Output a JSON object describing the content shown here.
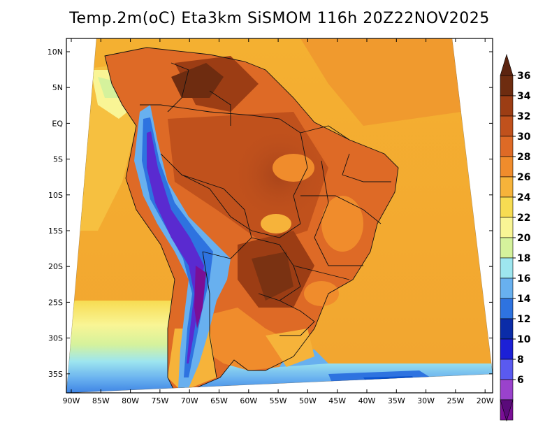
{
  "title": "Temp.2m(oC) Eta3km SiSMOM 116h 20Z22NOV2025",
  "map": {
    "lat_ticks": [
      "10N",
      "5N",
      "EQ",
      "5S",
      "10S",
      "15S",
      "20S",
      "25S",
      "30S",
      "35S"
    ],
    "lon_ticks": [
      "90W",
      "85W",
      "80W",
      "75W",
      "70W",
      "65W",
      "60W",
      "55W",
      "50W",
      "45W",
      "40W",
      "35W",
      "30W",
      "25W",
      "20W"
    ]
  },
  "colorbar": {
    "labels": [
      "36",
      "34",
      "32",
      "30",
      "28",
      "26",
      "24",
      "22",
      "20",
      "18",
      "16",
      "14",
      "12",
      "10",
      "8",
      "6"
    ],
    "colors": [
      "#6e2c10",
      "#9c3d14",
      "#c0511c",
      "#de6a26",
      "#f08c2c",
      "#f6b33a",
      "#f7dc52",
      "#f9f595",
      "#d5f29c",
      "#9ee6ef",
      "#68b0ef",
      "#2e73e0",
      "#0b2ca8",
      "#1c20d6",
      "#5a5af0",
      "#9a42cc",
      "#7a0f96"
    ],
    "arrow_top": "#5c2410",
    "arrow_bottom": "#5a0a7a"
  }
}
